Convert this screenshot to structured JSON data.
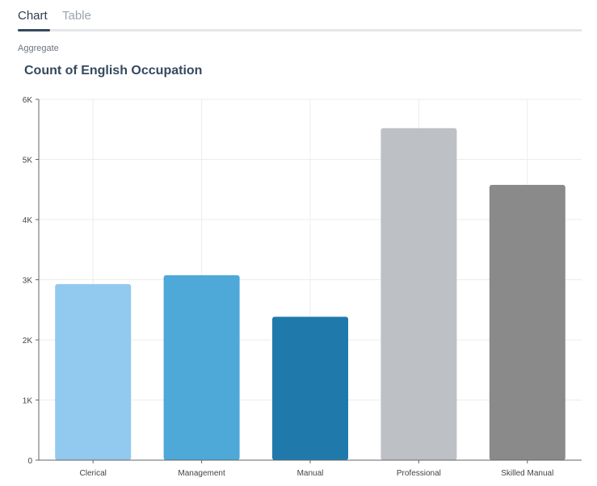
{
  "tabs": [
    {
      "label": "Chart",
      "active": true
    },
    {
      "label": "Table",
      "active": false
    }
  ],
  "aggregate_label": "Aggregate",
  "chart_data": {
    "type": "bar",
    "title": "Count of English Occupation",
    "categories": [
      "Clerical",
      "Management",
      "Manual",
      "Professional",
      "Skilled Manual"
    ],
    "values": [
      2928,
      3075,
      2384,
      5520,
      4577
    ],
    "colors": [
      "#92c9ef",
      "#4ea8d8",
      "#1f7aab",
      "#bdc0c4",
      "#8a8a8a"
    ],
    "ylim": [
      0,
      6000
    ],
    "yticks": [
      {
        "v": 0,
        "label": "0"
      },
      {
        "v": 1000,
        "label": "1K"
      },
      {
        "v": 2000,
        "label": "2K"
      },
      {
        "v": 3000,
        "label": "3K"
      },
      {
        "v": 4000,
        "label": "4K"
      },
      {
        "v": 5000,
        "label": "5K"
      },
      {
        "v": 6000,
        "label": "6K"
      }
    ],
    "grid": true,
    "xlabel": "",
    "ylabel": ""
  }
}
